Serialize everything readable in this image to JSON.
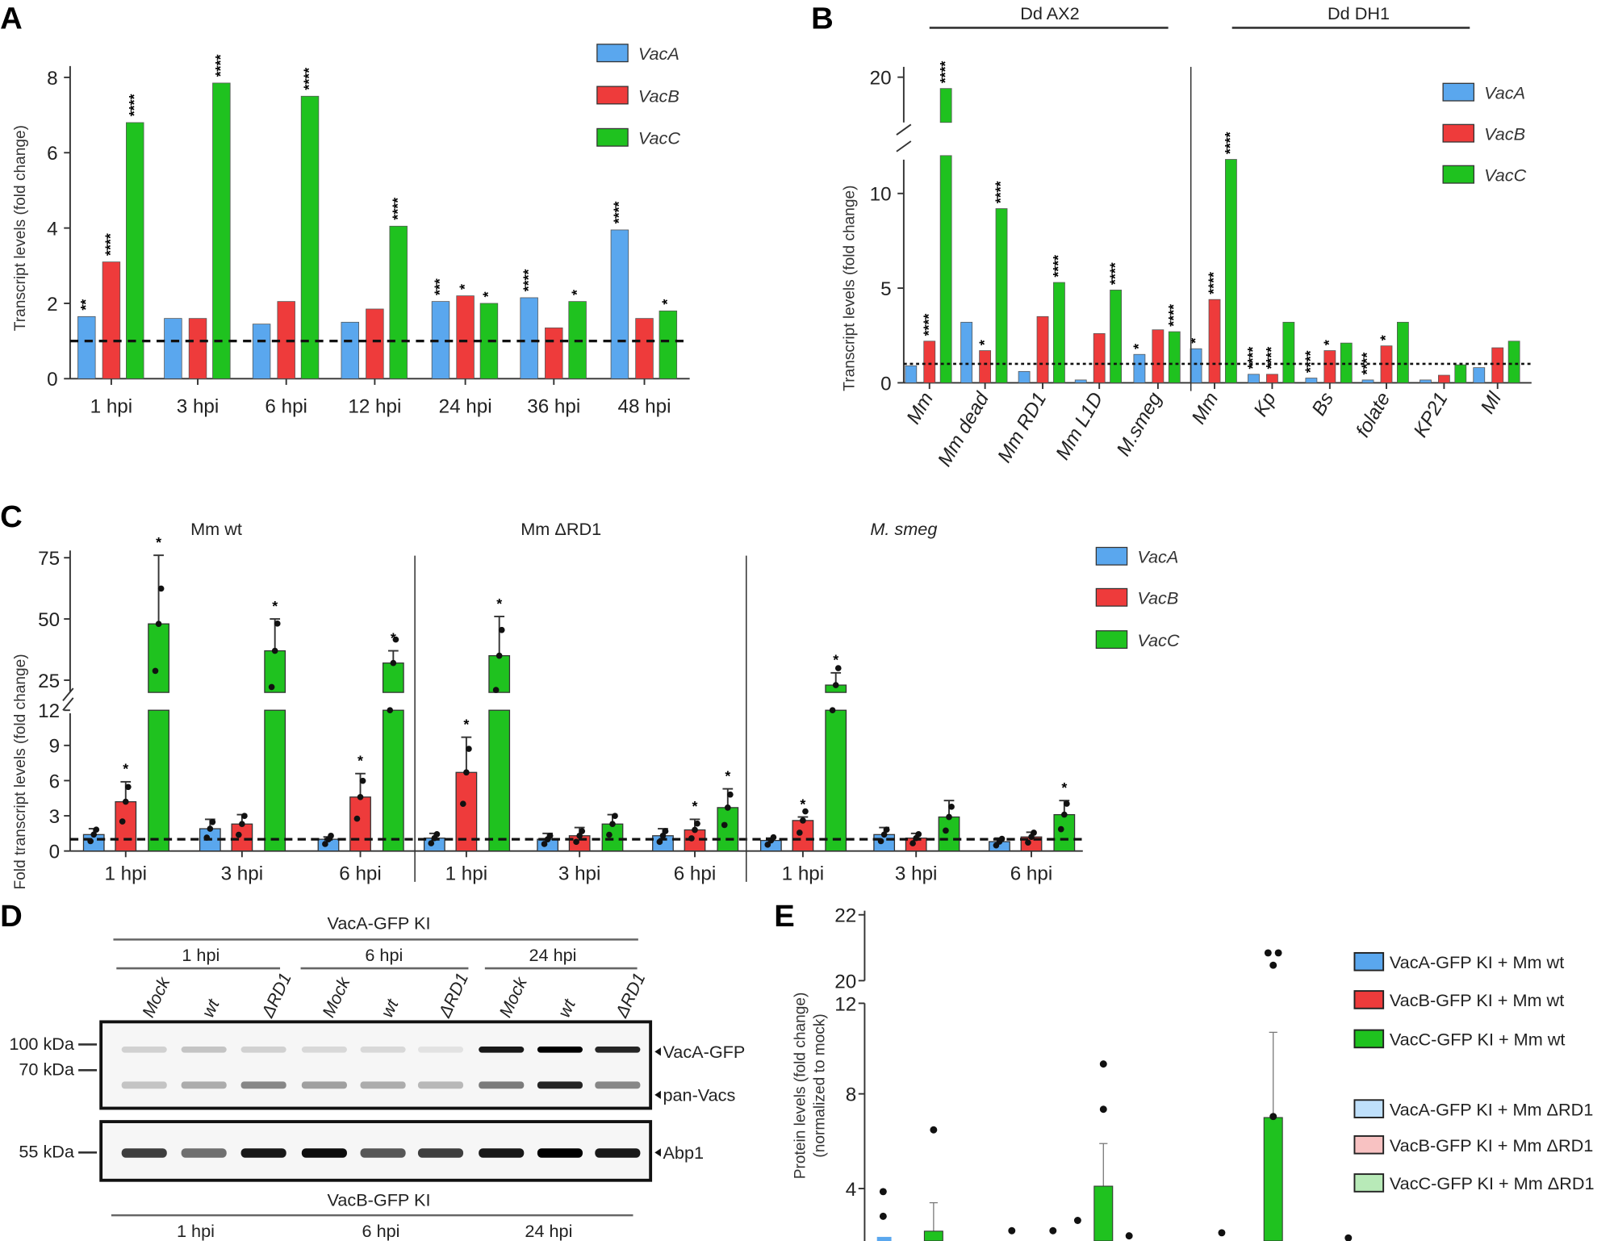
{
  "colors": {
    "VacA": "#5aa7ee",
    "VacB": "#ee3b3b",
    "VacC": "#1fc21f"
  },
  "chart_data": [
    {
      "panel": "A",
      "type": "bar",
      "ylabel": "Transcript levels (fold change)",
      "ylim": [
        0,
        8
      ],
      "yticks": [
        "0",
        "2",
        "4",
        "6",
        "8"
      ],
      "reference_line": 1,
      "categories": [
        "1 hpi",
        "3 hpi",
        "6 hpi",
        "12 hpi",
        "24 hpi",
        "36 hpi",
        "48 hpi"
      ],
      "legend": [
        "VacA",
        "VacB",
        "VacC"
      ],
      "legend_position": "top-right",
      "series": [
        {
          "name": "VacA",
          "values": [
            1.65,
            1.6,
            1.45,
            1.5,
            2.05,
            2.15,
            3.95
          ],
          "sig": [
            "**",
            "",
            "",
            "",
            "***",
            "****",
            "****"
          ]
        },
        {
          "name": "VacB",
          "values": [
            3.1,
            1.6,
            2.05,
            1.85,
            2.2,
            1.35,
            1.6
          ],
          "sig": [
            "****",
            "",
            "",
            "",
            "*",
            "",
            ""
          ]
        },
        {
          "name": "VacC",
          "values": [
            6.8,
            7.85,
            7.5,
            4.05,
            2.0,
            2.05,
            1.8
          ],
          "sig": [
            "****",
            "****",
            "****",
            "****",
            "*",
            "*",
            "*"
          ]
        }
      ]
    },
    {
      "panel": "B",
      "type": "bar",
      "ylabel": "Transcript levels (fold change)",
      "ylim": [
        0,
        21
      ],
      "yticks": [
        "0",
        "5",
        "10",
        "20"
      ],
      "axis_break": [
        12,
        18
      ],
      "reference_line": 1,
      "groups": [
        {
          "label": "Dd AX2"
        },
        {
          "label": "Dd DH1"
        }
      ],
      "categories": [
        "Mm",
        "Mm dead",
        "Mm RD1",
        "Mm L1D",
        "M.smeg",
        "Mm",
        "Kp",
        "Bs",
        "folate",
        "KP21",
        "Ml"
      ],
      "legend": [
        "VacA",
        "VacB",
        "VacC"
      ],
      "legend_position": "top-right",
      "series": [
        {
          "name": "VacA",
          "values": [
            0.9,
            3.2,
            0.6,
            0.15,
            1.5,
            1.8,
            0.45,
            0.25,
            0.15,
            0.15,
            0.8
          ],
          "sig": [
            "",
            "",
            "",
            "",
            "*",
            "*",
            "****",
            "****",
            "****",
            "",
            ""
          ]
        },
        {
          "name": "VacB",
          "values": [
            2.2,
            1.7,
            3.5,
            2.6,
            2.8,
            4.4,
            0.45,
            1.7,
            1.95,
            0.4,
            1.85
          ],
          "sig": [
            "****",
            "*",
            "",
            "",
            "",
            "****",
            "****",
            "*",
            "*",
            "",
            ""
          ]
        },
        {
          "name": "VacC",
          "values": [
            19.5,
            9.2,
            5.3,
            4.9,
            2.7,
            11.8,
            3.2,
            2.1,
            3.2,
            0.95,
            2.2
          ],
          "sig": [
            "****",
            "****",
            "****",
            "****",
            "****",
            "****",
            "",
            "",
            "",
            "",
            ""
          ]
        }
      ]
    },
    {
      "panel": "C",
      "type": "bar",
      "ylabel": "Fold transcript levels (fold change)",
      "ylim": [
        0,
        75
      ],
      "yticks": [
        "0",
        "3",
        "6",
        "9",
        "12",
        "25",
        "50",
        "75"
      ],
      "axis_break": [
        12,
        20
      ],
      "reference_line": 1,
      "groups": [
        {
          "label": "Mm wt"
        },
        {
          "label": "Mm ΔRD1"
        },
        {
          "label": "M. smeg"
        }
      ],
      "categories": [
        "1 hpi",
        "3 hpi",
        "6 hpi",
        "1 hpi",
        "3 hpi",
        "6 hpi",
        "1 hpi",
        "3 hpi",
        "6 hpi"
      ],
      "legend": [
        "VacA",
        "VacB",
        "VacC"
      ],
      "legend_position": "right",
      "series": [
        {
          "name": "VacA",
          "values": [
            1.4,
            1.9,
            1.0,
            1.1,
            1.0,
            1.3,
            0.9,
            1.4,
            0.8
          ],
          "error": [
            0.5,
            0.8,
            0.2,
            0.4,
            0.5,
            0.6,
            0.2,
            0.6,
            0.3
          ],
          "sig": [
            "",
            "",
            "",
            "",
            "",
            "",
            "",
            "",
            ""
          ]
        },
        {
          "name": "VacB",
          "values": [
            4.2,
            2.3,
            4.6,
            6.7,
            1.3,
            1.8,
            2.6,
            1.1,
            1.2
          ],
          "error": [
            1.7,
            0.8,
            2.0,
            3.0,
            0.7,
            0.9,
            0.3,
            0.4,
            0.4
          ],
          "sig": [
            "*",
            "",
            "*",
            "*",
            "",
            "*",
            "*",
            "",
            ""
          ]
        },
        {
          "name": "VacC",
          "values": [
            48,
            37,
            32,
            35,
            2.3,
            3.7,
            23,
            2.9,
            3.1
          ],
          "error": [
            28,
            13,
            5,
            16,
            0.8,
            1.6,
            5,
            1.4,
            1.2
          ],
          "sig": [
            "*",
            "*",
            "*",
            "*",
            "",
            "*",
            "*",
            "",
            "*"
          ]
        }
      ]
    },
    {
      "panel": "E",
      "type": "bar",
      "ylabel": "Protein levels (fold change)",
      "ylabel2": "(normalized to mock)",
      "yticks": [
        "4",
        "8",
        "12",
        "20",
        "22"
      ],
      "axis_break": [
        12,
        20
      ],
      "legend_position": "right",
      "legend": [
        "VacA-GFP KI + Mm wt",
        "VacB-GFP KI + Mm wt",
        "VacC-GFP KI + Mm wt",
        "VacA-GFP KI + Mm ΔRD1",
        "VacB-GFP KI + Mm ΔRD1",
        "VacC-GFP KI + Mm ΔRD1"
      ],
      "series": [
        {
          "name": "VacC-GFP KI + Mm wt",
          "values": [
            2.2,
            4.1,
            7.0
          ],
          "error": [
            1.2,
            1.8,
            3.6
          ]
        }
      ]
    }
  ],
  "panelA": {
    "label": "A"
  },
  "panelB": {
    "label": "B"
  },
  "panelC": {
    "label": "C"
  },
  "panelD": {
    "label": "D",
    "top_title": "VacA-GFP KI",
    "timepoints": [
      "1 hpi",
      "6 hpi",
      "24 hpi"
    ],
    "lanes": [
      "Mock",
      "wt",
      "ΔRD1",
      "Mock",
      "wt",
      "ΔRD1",
      "Mock",
      "wt",
      "ΔRD1"
    ],
    "markers": [
      "100 kDa",
      "70 kDa",
      "55 kDa"
    ],
    "bands": [
      "VacA-GFP",
      "pan-Vacs",
      "Abp1"
    ],
    "vacagfp_intensity": [
      0.15,
      0.2,
      0.15,
      0.12,
      0.12,
      0.08,
      0.9,
      1.0,
      0.85
    ],
    "panvacs_intensity": [
      0.2,
      0.3,
      0.45,
      0.35,
      0.3,
      0.25,
      0.5,
      0.85,
      0.45
    ],
    "abp1_intensity": [
      0.75,
      0.55,
      0.9,
      0.95,
      0.65,
      0.75,
      0.9,
      1.0,
      0.9
    ],
    "bottom_title": "VacB-GFP KI",
    "bottom_timepoints": [
      "1 hpi",
      "6 hpi",
      "24 hpi"
    ]
  },
  "panelE": {
    "label": "E"
  }
}
